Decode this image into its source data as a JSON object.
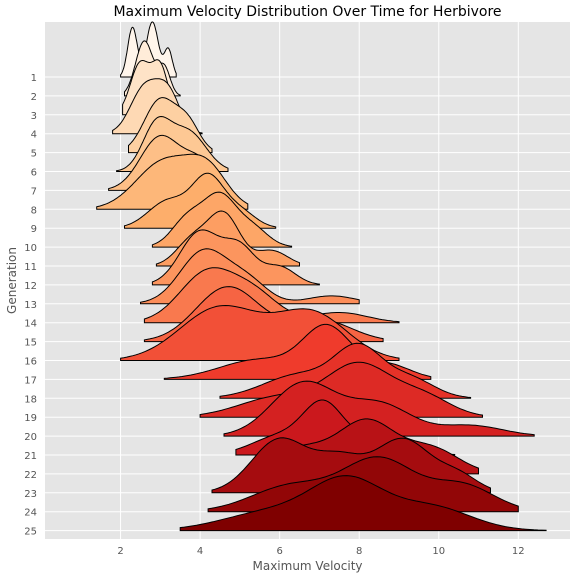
{
  "chart_data": {
    "type": "ridgeline",
    "title": "Maximum Velocity Distribution Over Time for Herbivore",
    "xlabel": "Maximum Velocity",
    "ylabel": "Generation",
    "xlim": [
      0.1,
      13.3
    ],
    "xticks": [
      2,
      4,
      6,
      8,
      10,
      12
    ],
    "grid": true,
    "colormap": [
      "#fff5eb",
      "#fdd0a2",
      "#fdae6b",
      "#fc8d59",
      "#ef3b2c",
      "#cb181d",
      "#7f0000"
    ],
    "series": [
      {
        "name": "1",
        "range": [
          2.0,
          3.4
        ],
        "peaks": [
          [
            2.3,
            0.12,
            0.9
          ],
          [
            2.8,
            0.15,
            1.0
          ],
          [
            3.2,
            0.1,
            0.5
          ]
        ]
      },
      {
        "name": "2",
        "range": [
          2.1,
          3.5
        ],
        "peaks": [
          [
            2.6,
            0.22,
            1.0
          ],
          [
            3.1,
            0.15,
            0.5
          ]
        ]
      },
      {
        "name": "3",
        "range": [
          2.05,
          3.6
        ],
        "peaks": [
          [
            2.5,
            0.25,
            0.9
          ],
          [
            3.0,
            0.2,
            0.8
          ]
        ]
      },
      {
        "name": "4",
        "range": [
          1.8,
          4.05
        ],
        "peaks": [
          [
            2.6,
            0.35,
            0.7
          ],
          [
            3.2,
            0.3,
            0.6
          ]
        ]
      },
      {
        "name": "5",
        "range": [
          2.2,
          4.3
        ],
        "peaks": [
          [
            3.0,
            0.4,
            1.0
          ],
          [
            3.7,
            0.3,
            0.5
          ]
        ]
      },
      {
        "name": "6",
        "range": [
          1.9,
          4.7
        ],
        "peaks": [
          [
            2.9,
            0.35,
            0.8
          ],
          [
            3.7,
            0.45,
            0.7
          ]
        ]
      },
      {
        "name": "7",
        "range": [
          1.7,
          4.7
        ],
        "peaks": [
          [
            3.0,
            0.5,
            1.0
          ],
          [
            4.0,
            0.4,
            0.5
          ]
        ]
      },
      {
        "name": "8",
        "range": [
          1.4,
          5.2
        ],
        "peaks": [
          [
            3.1,
            0.7,
            0.8
          ],
          [
            4.2,
            0.5,
            0.6
          ]
        ]
      },
      {
        "name": "9",
        "range": [
          2.1,
          5.9
        ],
        "peaks": [
          [
            3.2,
            0.5,
            0.5
          ],
          [
            4.2,
            0.4,
            0.9
          ],
          [
            5.0,
            0.4,
            0.3
          ]
        ]
      },
      {
        "name": "10",
        "range": [
          2.8,
          6.3
        ],
        "peaks": [
          [
            3.7,
            0.4,
            0.6
          ],
          [
            4.5,
            0.4,
            1.0
          ],
          [
            5.3,
            0.4,
            0.4
          ]
        ]
      },
      {
        "name": "11",
        "range": [
          2.9,
          6.5
        ],
        "peaks": [
          [
            3.8,
            0.4,
            0.5
          ],
          [
            4.6,
            0.4,
            1.0
          ],
          [
            5.8,
            0.4,
            0.3
          ]
        ]
      },
      {
        "name": "12",
        "range": [
          2.8,
          7.0
        ],
        "peaks": [
          [
            4.0,
            0.5,
            0.9
          ],
          [
            5.0,
            0.4,
            0.6
          ],
          [
            6.0,
            0.4,
            0.3
          ]
        ]
      },
      {
        "name": "13",
        "range": [
          2.5,
          8.0
        ],
        "peaks": [
          [
            4.1,
            0.6,
            1.0
          ],
          [
            5.2,
            0.5,
            0.4
          ],
          [
            7.3,
            0.6,
            0.15
          ]
        ]
      },
      {
        "name": "14",
        "range": [
          2.6,
          9.0
        ],
        "peaks": [
          [
            4.2,
            0.7,
            1.0
          ],
          [
            5.4,
            0.6,
            0.5
          ],
          [
            7.5,
            0.7,
            0.2
          ]
        ]
      },
      {
        "name": "15",
        "range": [
          2.6,
          8.6
        ],
        "peaks": [
          [
            4.7,
            0.8,
            1.0
          ],
          [
            7.0,
            0.8,
            0.4
          ]
        ]
      },
      {
        "name": "16",
        "range": [
          2.0,
          9.0
        ],
        "peaks": [
          [
            4.5,
            1.0,
            0.9
          ],
          [
            6.8,
            0.9,
            0.8
          ]
        ]
      },
      {
        "name": "17",
        "range": [
          3.1,
          9.8
        ],
        "peaks": [
          [
            5.5,
            1.0,
            0.4
          ],
          [
            7.2,
            0.6,
            1.0
          ],
          [
            8.7,
            0.6,
            0.3
          ]
        ]
      },
      {
        "name": "18",
        "range": [
          4.5,
          10.8
        ],
        "peaks": [
          [
            6.5,
            0.9,
            0.5
          ],
          [
            8.0,
            0.6,
            1.0
          ],
          [
            9.3,
            0.6,
            0.4
          ]
        ]
      },
      {
        "name": "19",
        "range": [
          4.0,
          11.1
        ],
        "peaks": [
          [
            6.0,
            1.0,
            0.4
          ],
          [
            8.0,
            0.8,
            1.0
          ],
          [
            9.6,
            0.7,
            0.4
          ]
        ]
      },
      {
        "name": "20",
        "range": [
          4.6,
          12.4
        ],
        "peaks": [
          [
            6.6,
            0.8,
            1.0
          ],
          [
            8.5,
            0.8,
            0.6
          ],
          [
            10.8,
            0.8,
            0.2
          ]
        ]
      },
      {
        "name": "21",
        "range": [
          4.9,
          10.4
        ],
        "peaks": [
          [
            6.0,
            0.7,
            0.4
          ],
          [
            7.1,
            0.5,
            1.0
          ],
          [
            8.5,
            0.7,
            0.4
          ]
        ]
      },
      {
        "name": "22",
        "range": [
          5.3,
          11.0
        ],
        "peaks": [
          [
            6.5,
            0.8,
            0.5
          ],
          [
            8.2,
            0.7,
            1.0
          ],
          [
            9.8,
            0.7,
            0.5
          ]
        ]
      },
      {
        "name": "23",
        "range": [
          4.3,
          11.3
        ],
        "peaks": [
          [
            6.0,
            0.7,
            1.0
          ],
          [
            7.5,
            0.6,
            0.6
          ],
          [
            9.1,
            0.7,
            1.0
          ],
          [
            10.5,
            0.5,
            0.3
          ]
        ]
      },
      {
        "name": "24",
        "range": [
          4.2,
          12.0
        ],
        "peaks": [
          [
            6.3,
            1.0,
            0.5
          ],
          [
            8.5,
            0.9,
            1.0
          ],
          [
            10.6,
            0.8,
            0.5
          ]
        ]
      },
      {
        "name": "25",
        "range": [
          3.5,
          12.7
        ],
        "peaks": [
          [
            5.8,
            1.2,
            0.4
          ],
          [
            7.7,
            0.9,
            1.0
          ],
          [
            9.8,
            1.0,
            0.5
          ]
        ]
      }
    ]
  }
}
